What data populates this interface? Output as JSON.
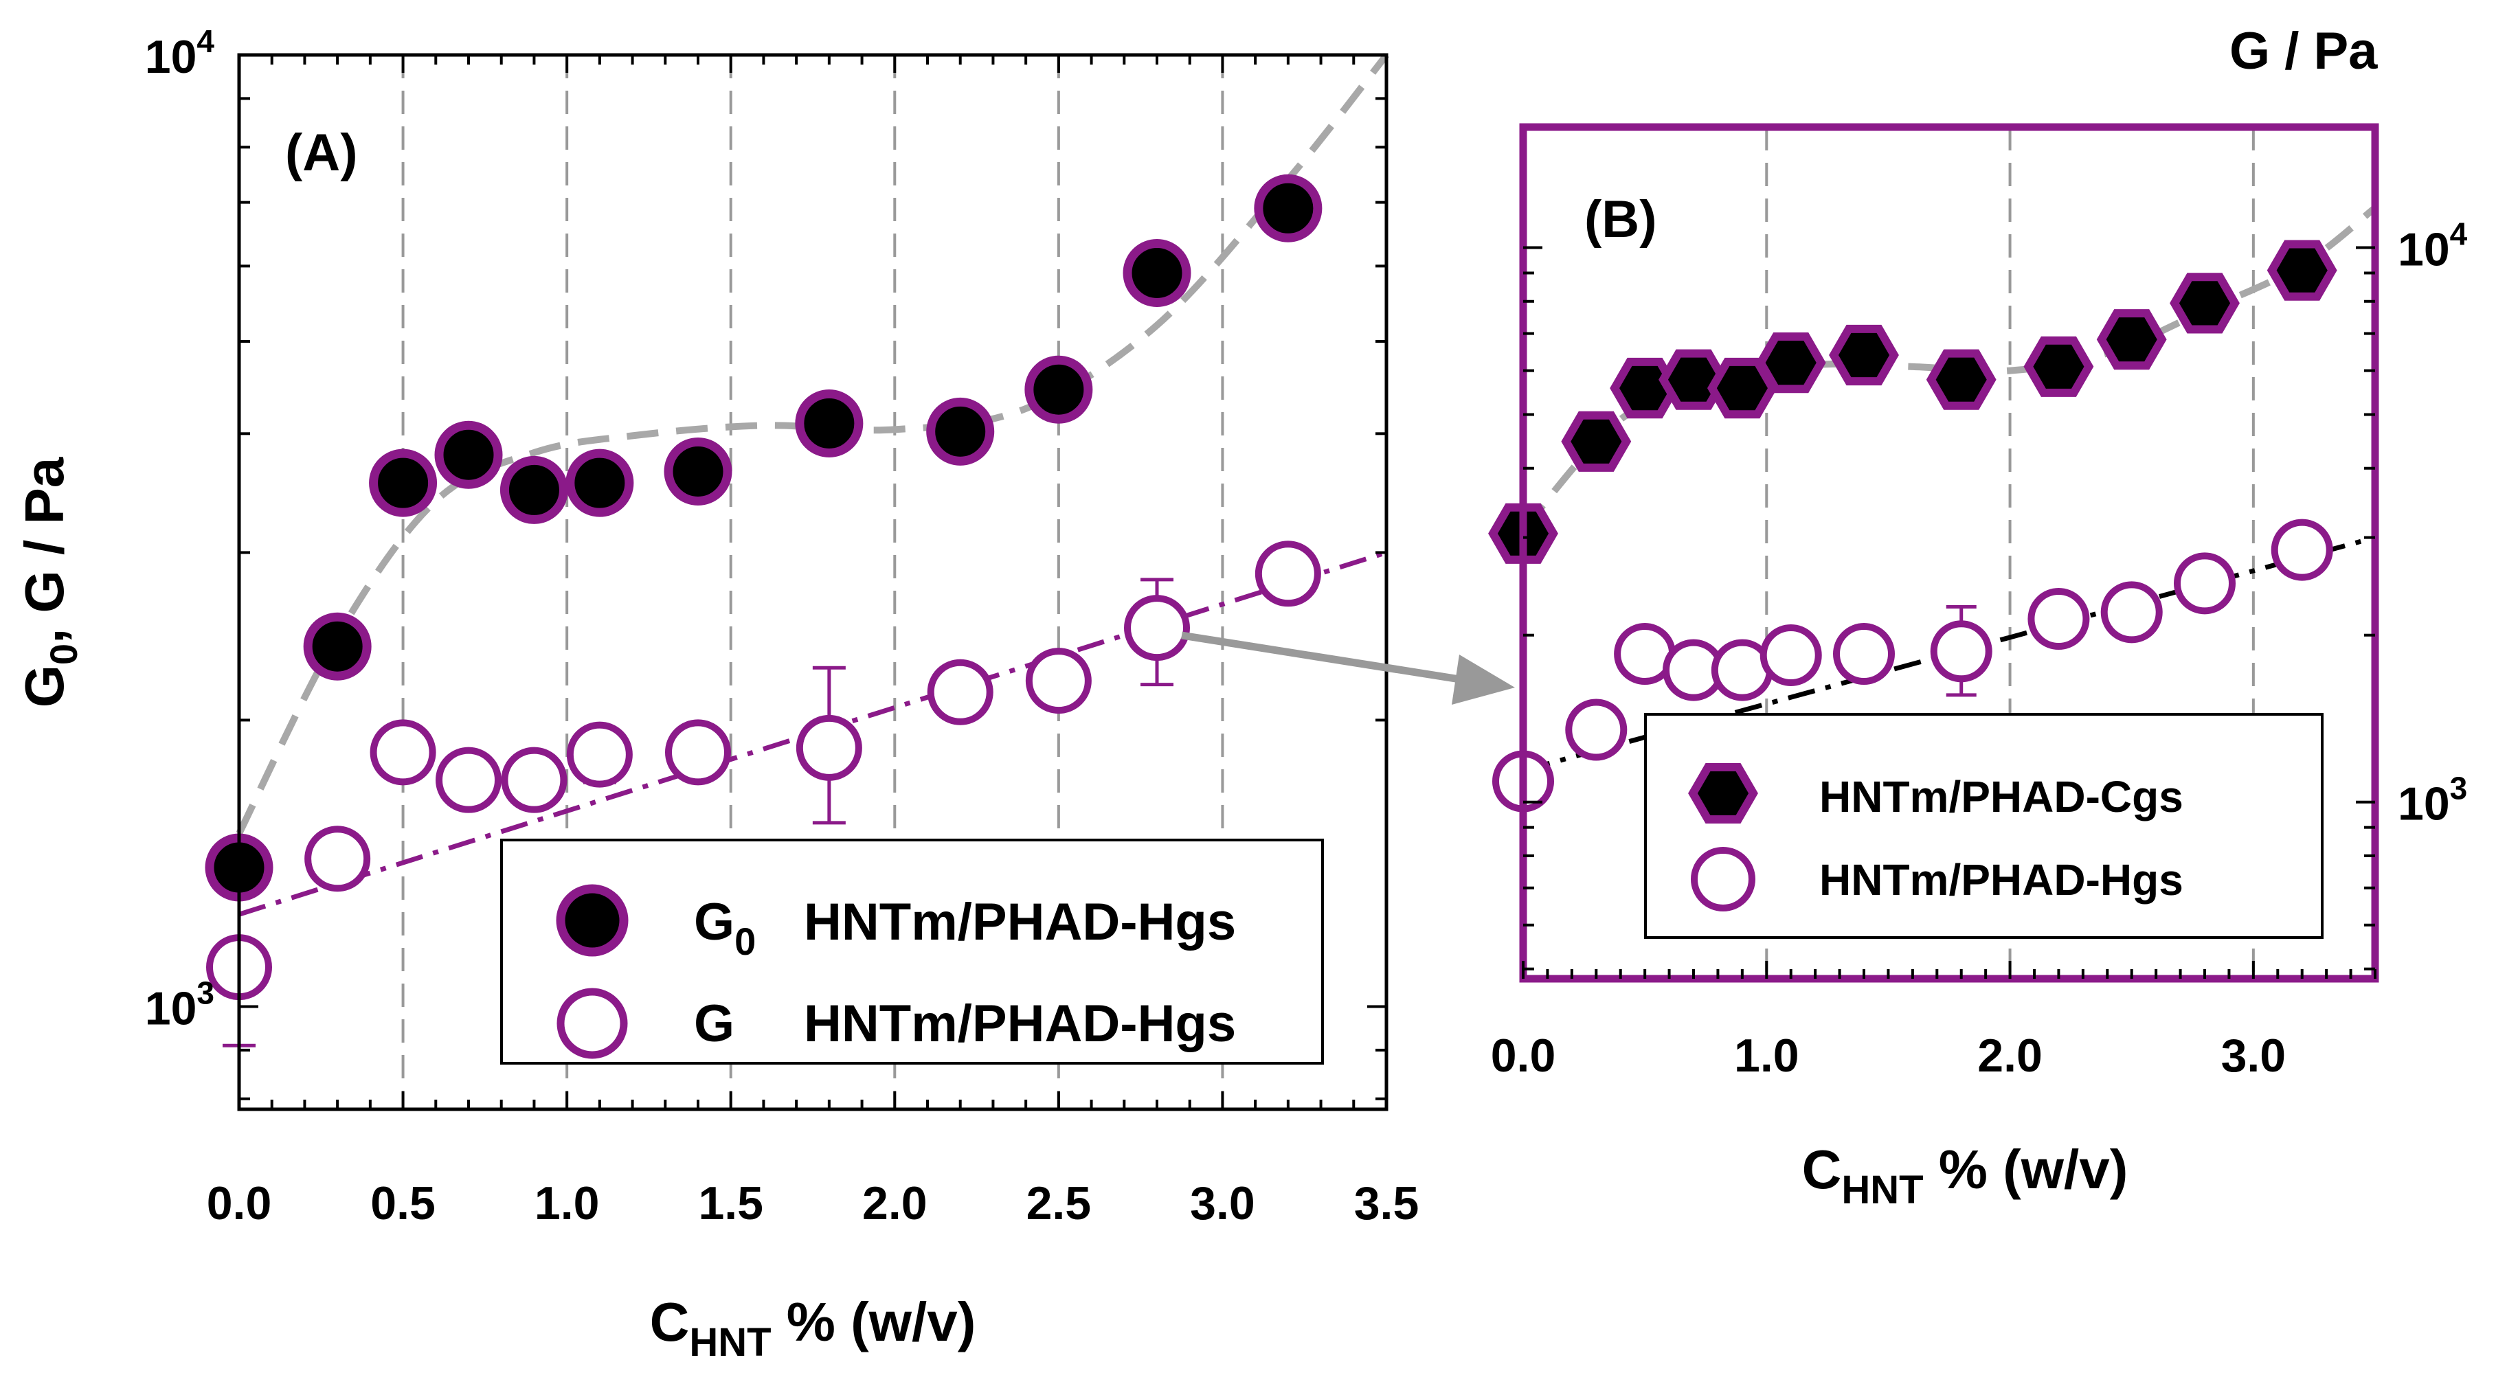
{
  "colors": {
    "accent": "#8b1a89",
    "fit_gray": "#a8a8a8",
    "marker_fill": "#000000",
    "grid": "#999999",
    "arrow": "#999999"
  },
  "chart_data": [
    {
      "type": "scatter",
      "panel_label": "(A)",
      "xlabel_main": "C",
      "xlabel_sub": "HNT",
      "xlabel_tail": " % (w/v)",
      "ylabel_main": "G",
      "ylabel_sub": "0",
      "ylabel_tail": ", G / Pa",
      "xlim": [
        0,
        3.5
      ],
      "ylim": [
        780,
        10000
      ],
      "yscale": "log",
      "x_ticks": [
        "0.0",
        "0.5",
        "1.0",
        "1.5",
        "2.0",
        "2.5",
        "3.0",
        "3.5"
      ],
      "x_tick_values": [
        0,
        0.5,
        1.0,
        1.5,
        2.0,
        2.5,
        3.0,
        3.5
      ],
      "y_ticks": [
        {
          "value": 1000,
          "base": "10",
          "exp": "3"
        },
        {
          "value": 10000,
          "base": "10",
          "exp": "4"
        }
      ],
      "grid": "vertical dashed",
      "legend_position": "bottom-right",
      "series": [
        {
          "name": "G0 HNTm/PHAD-Hgs",
          "legend_symbol": "G",
          "legend_symbol_sub": "0",
          "legend_text": "HNTm/PHAD-Hgs",
          "marker": "filled-circle",
          "x": [
            0.0,
            0.3,
            0.5,
            0.7,
            0.9,
            1.1,
            1.4,
            1.8,
            2.2,
            2.5,
            2.8,
            3.2
          ],
          "y": [
            1400,
            2390,
            3550,
            3800,
            3490,
            3550,
            3650,
            4100,
            4020,
            4450,
            5900,
            6900
          ]
        },
        {
          "name": "G HNTm/PHAD-Hgs",
          "legend_symbol": "G",
          "legend_symbol_sub": "",
          "legend_text": "HNTm/PHAD-Hgs",
          "marker": "open-circle",
          "x": [
            0.0,
            0.3,
            0.5,
            0.7,
            0.9,
            1.1,
            1.4,
            1.8,
            2.2,
            2.5,
            2.8,
            3.2
          ],
          "y": [
            1100,
            1430,
            1850,
            1730,
            1730,
            1840,
            1850,
            1870,
            2140,
            2200,
            2500,
            2850
          ],
          "error": [
            {
              "x": 0.0,
              "low": 910,
              "high": 1310
            },
            {
              "x": 1.1,
              "low": 1720,
              "high": 1960
            },
            {
              "x": 1.8,
              "low": 1560,
              "high": 2270
            },
            {
              "x": 2.8,
              "low": 2180,
              "high": 2810
            }
          ]
        }
      ]
    },
    {
      "type": "scatter",
      "panel_label": "(B)",
      "top_label": "G / Pa",
      "xlabel_main": "C",
      "xlabel_sub": "HNT",
      "xlabel_tail": " % (w/v)",
      "xlim": [
        0,
        3.5
      ],
      "ylim": [
        480,
        16500
      ],
      "yscale": "log",
      "x_ticks": [
        "0.0",
        "1.0",
        "2.0",
        "3.0"
      ],
      "x_tick_values": [
        0,
        1.0,
        2.0,
        3.0
      ],
      "y_ticks": [
        {
          "value": 1000,
          "base": "10",
          "exp": "3"
        },
        {
          "value": 10000,
          "base": "10",
          "exp": "4"
        }
      ],
      "grid": "vertical dashed",
      "legend_position": "bottom-right",
      "series": [
        {
          "name": "HNTm/PHAD-Cgs",
          "legend_text": "HNTm/PHAD-Cgs",
          "marker": "filled-hexagon",
          "x": [
            0.0,
            0.3,
            0.5,
            0.7,
            0.9,
            1.1,
            1.4,
            1.8,
            2.2,
            2.5,
            2.8,
            3.2
          ],
          "y": [
            3050,
            4470,
            5580,
            5780,
            5580,
            6200,
            6400,
            5780,
            6100,
            6830,
            7940,
            9100
          ]
        },
        {
          "name": "HNTm/PHAD-Hgs",
          "legend_text": "HNTm/PHAD-Hgs",
          "marker": "open-circle",
          "x": [
            0.0,
            0.3,
            0.5,
            0.7,
            0.9,
            1.1,
            1.4,
            1.8,
            2.2,
            2.5,
            2.8,
            3.2
          ],
          "y": [
            1090,
            1350,
            1850,
            1730,
            1730,
            1840,
            1850,
            1870,
            2140,
            2200,
            2480,
            2850
          ],
          "error": [
            {
              "x": 1.8,
              "low": 1560,
              "high": 2250
            },
            {
              "x": 2.8,
              "low": 2290,
              "high": 2580
            }
          ]
        }
      ]
    }
  ]
}
